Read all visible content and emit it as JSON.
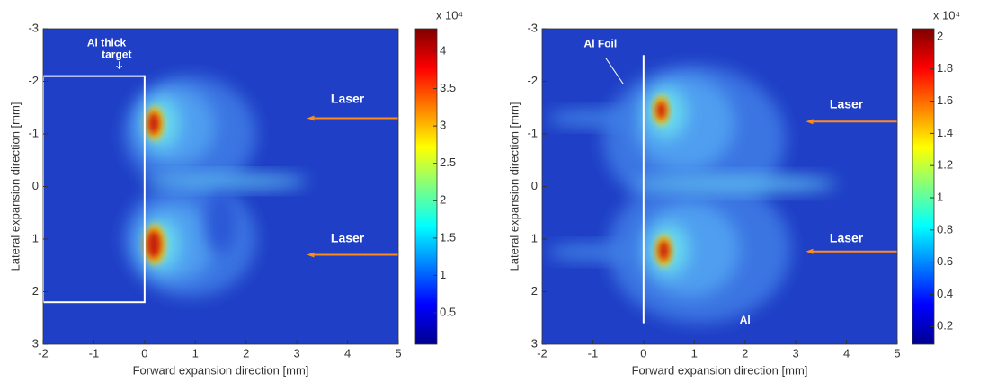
{
  "chart_data": [
    {
      "type": "heatmap",
      "xlabel": "Forward expansion direction [mm]",
      "ylabel": "Lateral expansion direction [mm]",
      "xlim": [
        -2,
        5
      ],
      "ylim": [
        -3,
        3
      ],
      "yreverse": true,
      "xticks": [
        -2,
        -1,
        0,
        1,
        2,
        3,
        4,
        5
      ],
      "yticks": [
        -3,
        -2,
        -1,
        0,
        1,
        2,
        3
      ],
      "colorbar": {
        "label": "x 10⁴",
        "lim": [
          0.08,
          4.3
        ],
        "ticks": [
          0.5,
          1,
          1.5,
          2,
          2.5,
          3,
          3.5,
          4
        ]
      },
      "annotations": [
        "Al thick",
        "target",
        "Laser",
        "Laser"
      ]
    },
    {
      "type": "heatmap",
      "xlabel": "Forward expansion direction [mm]",
      "ylabel": "Lateral expansion direction [mm]",
      "xlim": [
        -2,
        5
      ],
      "ylim": [
        -3,
        3
      ],
      "yreverse": true,
      "xticks": [
        -2,
        -1,
        0,
        1,
        2,
        3,
        4,
        5
      ],
      "yticks": [
        -3,
        -2,
        -1,
        0,
        1,
        2,
        3
      ],
      "colorbar": {
        "label": "x 10⁴",
        "lim": [
          0.09,
          2.05
        ],
        "ticks": [
          0.2,
          0.4,
          0.6,
          0.8,
          1,
          1.2,
          1.4,
          1.6,
          1.8,
          2
        ]
      },
      "annotations": [
        "Al Foil",
        "Laser",
        "Laser",
        "Al"
      ]
    }
  ]
}
